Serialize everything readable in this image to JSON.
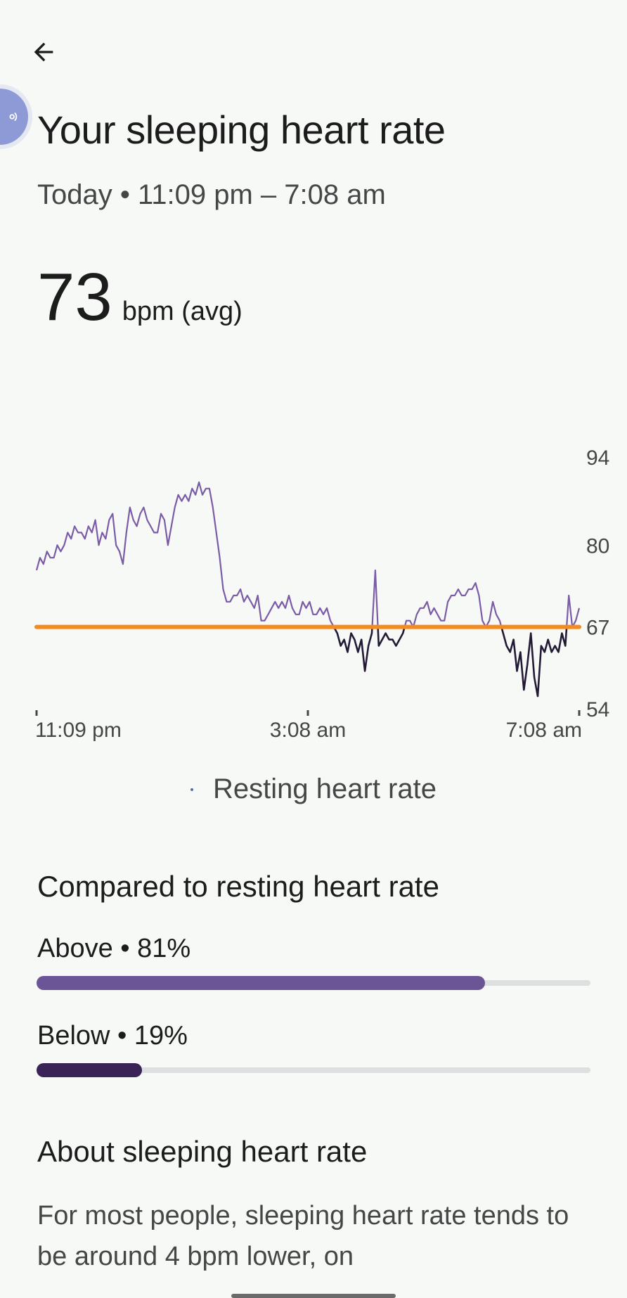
{
  "header": {
    "title": "Your sleeping heart rate",
    "time_range": "Today • 11:09 pm – 7:08 am"
  },
  "summary": {
    "avg_value": "73",
    "avg_unit": "bpm (avg)"
  },
  "chart_data": {
    "type": "line",
    "x_tick_labels": [
      "11:09 pm",
      "3:08 am",
      "7:08 am"
    ],
    "y_tick_labels": [
      "94",
      "80",
      "67",
      "54"
    ],
    "ylim": [
      54,
      94
    ],
    "resting_line": 67,
    "series": [
      {
        "name": "Resting heart rate",
        "values": [
          76,
          78,
          77,
          79,
          78,
          78,
          80,
          79,
          80,
          82,
          81,
          83,
          82,
          82,
          81,
          83,
          82,
          84,
          80,
          82,
          81,
          84,
          85,
          80,
          79,
          77,
          82,
          86,
          84,
          83,
          85,
          86,
          84,
          83,
          82,
          82,
          85,
          84,
          80,
          83,
          86,
          88,
          87,
          88,
          87,
          89,
          88,
          90,
          88,
          89,
          89,
          86,
          82,
          78,
          73,
          71,
          71,
          72,
          72,
          73,
          71,
          72,
          71,
          70,
          72,
          68,
          68,
          69,
          70,
          71,
          70,
          71,
          70,
          72,
          70,
          69,
          69,
          71,
          70,
          71,
          69,
          69,
          70,
          69,
          70,
          68,
          67,
          66,
          64,
          65,
          63,
          66,
          65,
          63,
          65,
          60,
          64,
          66,
          76,
          64,
          65,
          66,
          65,
          65,
          64,
          65,
          66,
          68,
          68,
          67,
          69,
          70,
          70,
          71,
          69,
          70,
          69,
          68,
          68,
          71,
          72,
          72,
          73,
          72,
          72,
          73,
          73,
          74,
          72,
          68,
          67,
          68,
          71,
          69,
          68,
          66,
          64,
          63,
          65,
          60,
          63,
          57,
          61,
          66,
          59,
          56,
          64,
          63,
          65,
          63,
          64,
          63,
          66,
          64,
          72,
          67,
          68,
          70
        ]
      }
    ]
  },
  "legend": {
    "label": "Resting heart rate"
  },
  "comparison": {
    "title": "Compared to resting heart rate",
    "above": {
      "label": "Above • 81%",
      "fraction": 0.81
    },
    "below": {
      "label": "Below • 19%",
      "fraction": 0.19
    }
  },
  "about": {
    "title": "About sleeping heart rate",
    "text": "For most people, sleeping heart rate tends to be around 4 bpm lower, on"
  },
  "colors": {
    "line": "#7a5ca6",
    "below_line": "#231a35",
    "resting": "#f58a1f",
    "above_bar": "#6c5596",
    "below_bar": "#3a2356"
  }
}
